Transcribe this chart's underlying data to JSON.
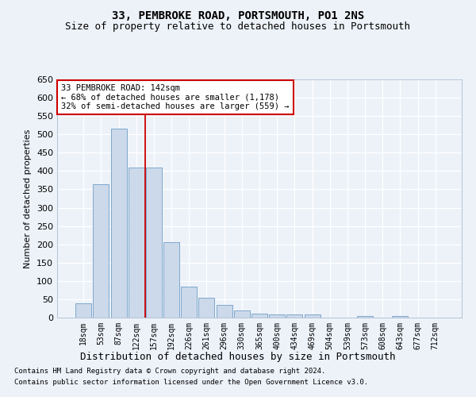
{
  "title": "33, PEMBROKE ROAD, PORTSMOUTH, PO1 2NS",
  "subtitle": "Size of property relative to detached houses in Portsmouth",
  "xlabel": "Distribution of detached houses by size in Portsmouth",
  "ylabel": "Number of detached properties",
  "bar_labels": [
    "18sqm",
    "53sqm",
    "87sqm",
    "122sqm",
    "157sqm",
    "192sqm",
    "226sqm",
    "261sqm",
    "296sqm",
    "330sqm",
    "365sqm",
    "400sqm",
    "434sqm",
    "469sqm",
    "504sqm",
    "539sqm",
    "573sqm",
    "608sqm",
    "643sqm",
    "677sqm",
    "712sqm"
  ],
  "bar_values": [
    38,
    365,
    515,
    410,
    410,
    205,
    85,
    55,
    35,
    20,
    10,
    8,
    8,
    8,
    0,
    0,
    5,
    0,
    5,
    0,
    0
  ],
  "bar_color": "#ccd9ea",
  "bar_edge_color": "#7ea8cc",
  "vline_x": 3.5,
  "vline_color": "#cc0000",
  "annotation_line1": "33 PEMBROKE ROAD: 142sqm",
  "annotation_line2": "← 68% of detached houses are smaller (1,178)",
  "annotation_line3": "32% of semi-detached houses are larger (559) →",
  "annotation_box_color": "white",
  "annotation_box_edge": "#cc0000",
  "ylim": [
    0,
    650
  ],
  "yticks": [
    0,
    50,
    100,
    150,
    200,
    250,
    300,
    350,
    400,
    450,
    500,
    550,
    600,
    650
  ],
  "footer1": "Contains HM Land Registry data © Crown copyright and database right 2024.",
  "footer2": "Contains public sector information licensed under the Open Government Licence v3.0.",
  "bg_color": "#edf2f9",
  "grid_color": "white",
  "title_fontsize": 10,
  "subtitle_fontsize": 9,
  "tick_fontsize": 7,
  "ylabel_fontsize": 8,
  "xlabel_fontsize": 9,
  "footer_fontsize": 6.5
}
